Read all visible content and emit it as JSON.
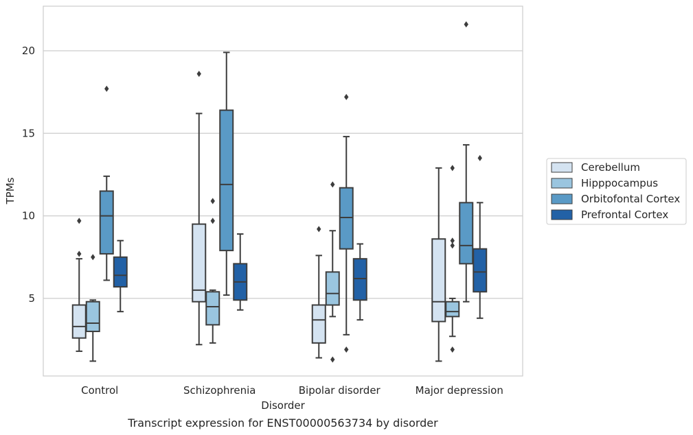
{
  "chart_data": {
    "type": "box",
    "caption": "Transcript expression for ENST00000563734 by disorder",
    "xlabel": "Disorder",
    "ylabel": "TPMs",
    "ylim": [
      0.3,
      22.7
    ],
    "yticks": [
      5,
      10,
      15,
      20
    ],
    "grid": "horizontal",
    "legend_placement": "right",
    "categories": [
      "Control",
      "Schizophrenia",
      "Bipolar disorder",
      "Major depression"
    ],
    "series": [
      {
        "name": "Cerebellum",
        "color": "#d4e3f1",
        "boxes": [
          {
            "whisker_low": 1.8,
            "q1": 2.6,
            "median": 3.3,
            "q3": 4.6,
            "whisker_high": 7.4,
            "outliers": [
              7.7,
              9.7
            ]
          },
          {
            "whisker_low": 2.2,
            "q1": 4.8,
            "median": 5.5,
            "q3": 9.5,
            "whisker_high": 16.2,
            "outliers": [
              18.6
            ]
          },
          {
            "whisker_low": 1.4,
            "q1": 2.3,
            "median": 3.7,
            "q3": 4.6,
            "whisker_high": 7.6,
            "outliers": [
              9.2
            ]
          },
          {
            "whisker_low": 1.2,
            "q1": 3.6,
            "median": 4.8,
            "q3": 8.6,
            "whisker_high": 12.9,
            "outliers": []
          }
        ]
      },
      {
        "name": "Hipppocampus",
        "color": "#9ac5df",
        "boxes": [
          {
            "whisker_low": 1.2,
            "q1": 3.0,
            "median": 3.5,
            "q3": 4.8,
            "whisker_high": 4.9,
            "outliers": [
              7.5
            ]
          },
          {
            "whisker_low": 2.3,
            "q1": 3.4,
            "median": 4.5,
            "q3": 5.4,
            "whisker_high": 5.5,
            "outliers": [
              9.7,
              10.9
            ]
          },
          {
            "whisker_low": 3.9,
            "q1": 4.6,
            "median": 5.3,
            "q3": 6.6,
            "whisker_high": 9.1,
            "outliers": [
              1.3,
              11.9
            ]
          },
          {
            "whisker_low": 2.7,
            "q1": 3.9,
            "median": 4.2,
            "q3": 4.8,
            "whisker_high": 5.0,
            "outliers": [
              1.9,
              8.2,
              8.5,
              12.9
            ]
          }
        ]
      },
      {
        "name": "Orbitofontal Cortex",
        "color": "#5a9ac6",
        "boxes": [
          {
            "whisker_low": 6.1,
            "q1": 7.7,
            "median": 10.0,
            "q3": 11.5,
            "whisker_high": 12.4,
            "outliers": [
              17.7
            ]
          },
          {
            "whisker_low": 5.2,
            "q1": 7.9,
            "median": 11.9,
            "q3": 16.4,
            "whisker_high": 19.9,
            "outliers": []
          },
          {
            "whisker_low": 2.8,
            "q1": 8.0,
            "median": 9.9,
            "q3": 11.7,
            "whisker_high": 14.8,
            "outliers": [
              1.9,
              17.2
            ]
          },
          {
            "whisker_low": 4.8,
            "q1": 7.1,
            "median": 8.2,
            "q3": 10.8,
            "whisker_high": 14.3,
            "outliers": [
              21.6
            ]
          }
        ]
      },
      {
        "name": "Prefrontal Cortex",
        "color": "#2261a6",
        "boxes": [
          {
            "whisker_low": 4.2,
            "q1": 5.7,
            "median": 6.4,
            "q3": 7.5,
            "whisker_high": 8.5,
            "outliers": []
          },
          {
            "whisker_low": 4.3,
            "q1": 4.9,
            "median": 6.0,
            "q3": 7.1,
            "whisker_high": 8.9,
            "outliers": []
          },
          {
            "whisker_low": 3.7,
            "q1": 4.9,
            "median": 6.2,
            "q3": 7.4,
            "whisker_high": 8.3,
            "outliers": []
          },
          {
            "whisker_low": 3.8,
            "q1": 5.4,
            "median": 6.6,
            "q3": 8.0,
            "whisker_high": 10.8,
            "outliers": [
              13.5
            ]
          }
        ]
      }
    ]
  }
}
